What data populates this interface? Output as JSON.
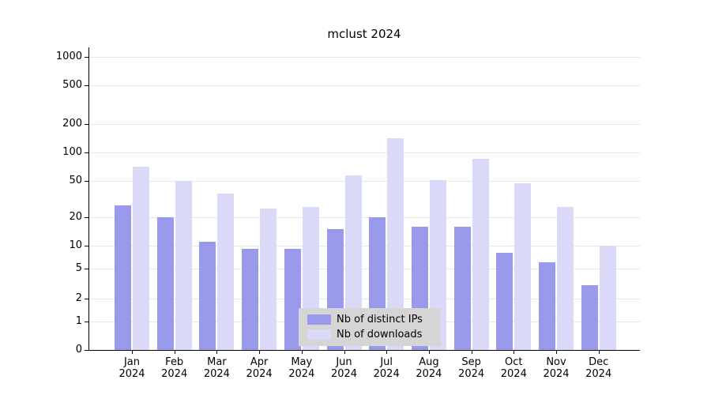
{
  "chart_data": {
    "type": "bar",
    "title": "mclust 2024",
    "categories": [
      "Jan 2024",
      "Feb 2024",
      "Mar 2024",
      "Apr 2024",
      "May 2024",
      "Jun 2024",
      "Jul 2024",
      "Aug 2024",
      "Sep 2024",
      "Oct 2024",
      "Nov 2024",
      "Dec 2024"
    ],
    "series": [
      {
        "name": "Nb of distinct IPs",
        "color": "#9a9aec",
        "values": [
          27,
          20,
          11,
          9,
          9,
          15,
          20,
          16,
          16,
          8,
          6,
          3
        ]
      },
      {
        "name": "Nb of downloads",
        "color": "#dadaf8",
        "values": [
          70,
          50,
          36,
          25,
          26,
          57,
          140,
          51,
          85,
          47,
          26,
          10
        ]
      }
    ],
    "xlabel": "",
    "ylabel": "",
    "yscale": "log-with-zero",
    "yticks": [
      0,
      1,
      2,
      5,
      10,
      20,
      50,
      100,
      200,
      500,
      1000
    ],
    "ylim": [
      0,
      1000
    ],
    "grid": true,
    "grid_color": "#e7e7e7",
    "legend_position": "bottom-center-inside",
    "legend_bg": "#d5d5d5"
  }
}
